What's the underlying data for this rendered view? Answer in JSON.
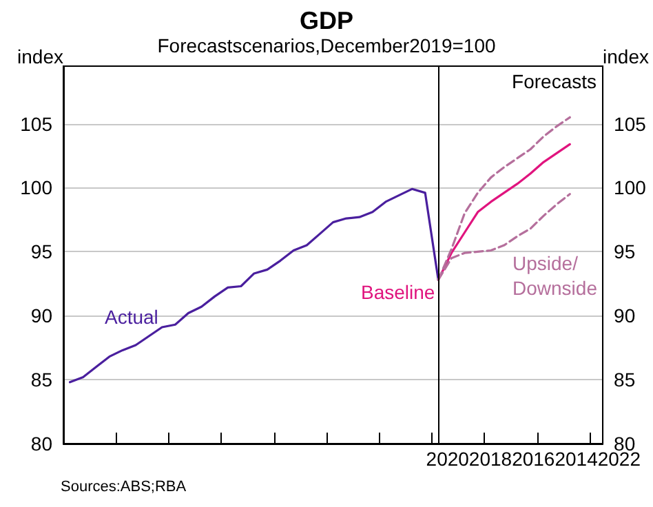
{
  "chart_data": {
    "type": "line",
    "title": "GDP",
    "subtitle": "Forecastscenarios,December2019=100",
    "ylabel": "index",
    "y2label": "index",
    "annotations": [
      "Forecasts",
      "20202018201620142022",
      "Sources:ABS;RBA"
    ],
    "categories": [
      null,
      null,
      null,
      null,
      null,
      null,
      null,
      null,
      null,
      null,
      null,
      null,
      null,
      null,
      null,
      null,
      null,
      null,
      null,
      null,
      null,
      null,
      null,
      null,
      null,
      null,
      null,
      null,
      null,
      null,
      null,
      null,
      null,
      null,
      null,
      null,
      null,
      null,
      null,
      null,
      null
    ],
    "ylim": [
      80,
      109.5
    ],
    "yticks": [
      80,
      85,
      90,
      95,
      100,
      105
    ],
    "y2lim": [
      80,
      109.5
    ],
    "y2ticks": [
      80,
      85,
      90,
      95,
      100,
      105
    ],
    "grid": "y",
    "legend": false,
    "marker": "none",
    "series": [
      {
        "name": "Actual",
        "color": "#4a1f9e",
        "line_style": "solid",
        "values": [
          84.8,
          85.2,
          86.0,
          86.8,
          87.3,
          87.7,
          88.4,
          89.1,
          89.3,
          90.2,
          90.7,
          91.5,
          92.2,
          92.3,
          93.3,
          93.6,
          94.3,
          95.1,
          95.5,
          96.4,
          97.3,
          97.6,
          97.7,
          98.1,
          98.9,
          99.4,
          99.9,
          99.6,
          92.8,
          null,
          null,
          null,
          null,
          null,
          null,
          null,
          null,
          null,
          null,
          null,
          null
        ]
      },
      {
        "name": "Baseline",
        "color": "#e0147e",
        "line_style": "solid",
        "values": [
          null,
          null,
          null,
          null,
          null,
          null,
          null,
          null,
          null,
          null,
          null,
          null,
          null,
          null,
          null,
          null,
          null,
          null,
          null,
          null,
          null,
          null,
          null,
          null,
          null,
          null,
          null,
          null,
          92.8,
          94.9,
          96.5,
          98.1,
          98.9,
          99.6,
          100.3,
          101.1,
          102.0,
          102.7,
          103.4,
          null,
          null
        ]
      },
      {
        "name": "Upside/Downside",
        "color": "#b56f9c",
        "line_style": "dashed",
        "values": [
          null,
          null,
          null,
          null,
          null,
          null,
          null,
          null,
          null,
          null,
          null,
          null,
          null,
          null,
          null,
          null,
          null,
          null,
          null,
          null,
          null,
          null,
          null,
          null,
          null,
          null,
          null,
          null,
          92.8,
          95.2,
          98.0,
          99.6,
          100.8,
          101.6,
          102.3,
          103.0,
          104.0,
          104.8,
          105.5,
          null,
          null
        ]
      },
      {
        "color": "#b56f9c",
        "line_style": "dashed",
        "values": [
          null,
          null,
          null,
          null,
          null,
          null,
          null,
          null,
          null,
          null,
          null,
          null,
          null,
          null,
          null,
          null,
          null,
          null,
          null,
          null,
          null,
          null,
          null,
          null,
          null,
          null,
          null,
          null,
          92.8,
          94.5,
          94.9,
          95.0,
          95.1,
          95.5,
          96.2,
          96.8,
          97.8,
          98.7,
          99.5,
          null,
          null
        ]
      }
    ]
  }
}
